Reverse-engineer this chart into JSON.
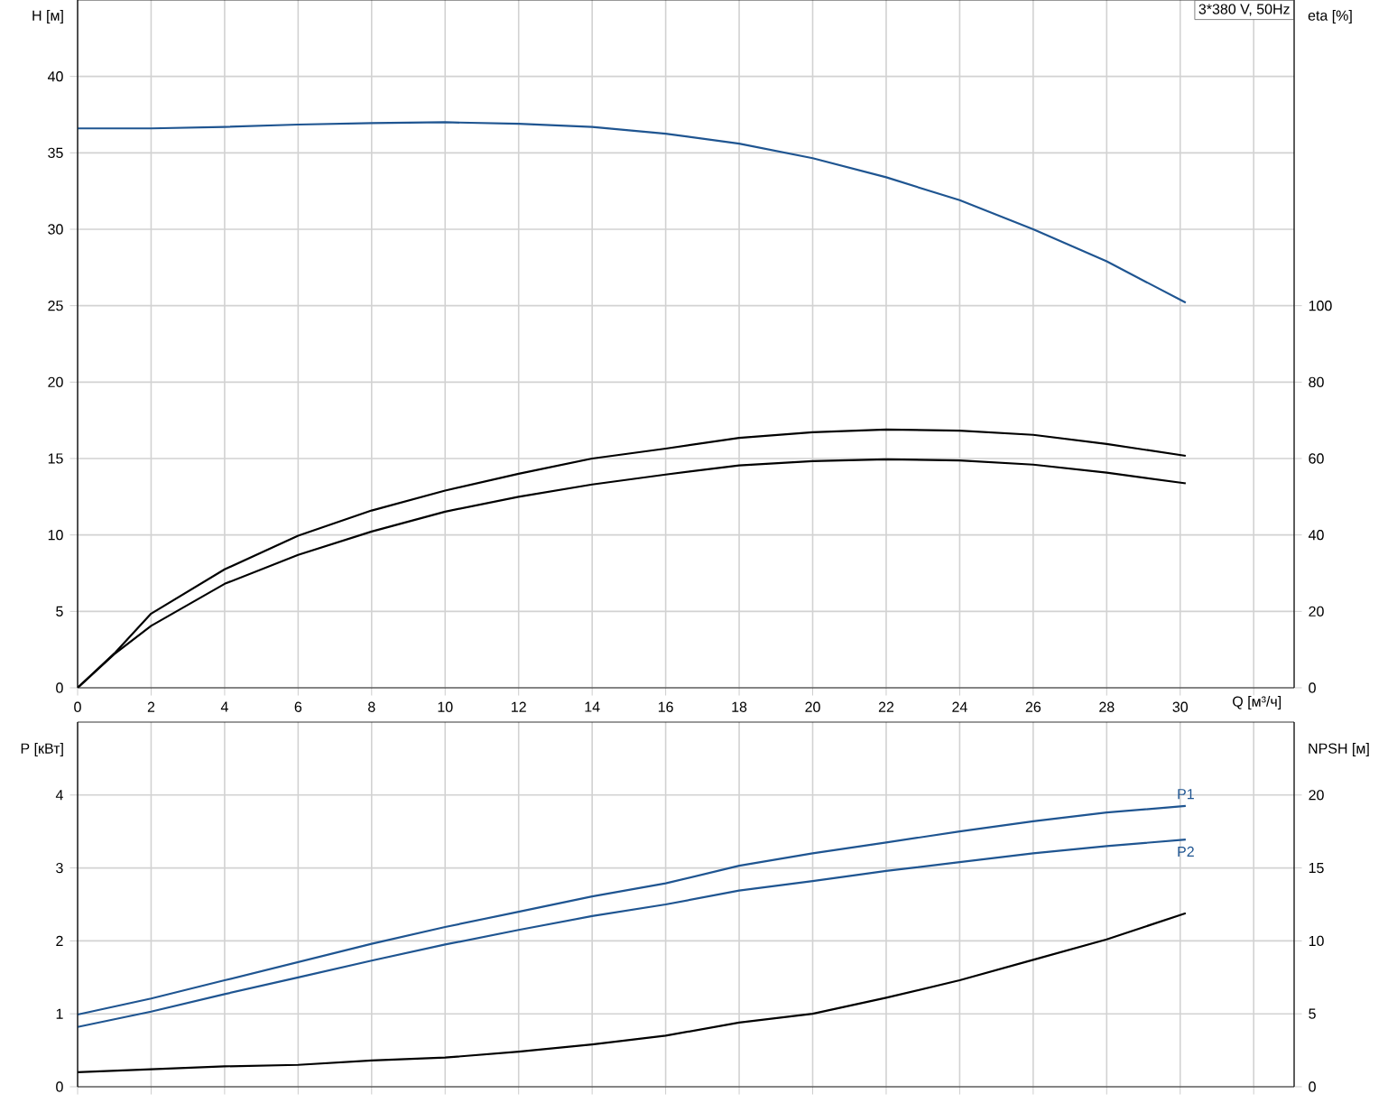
{
  "chart_data": [
    {
      "type": "line",
      "title": "3*380 V, 50Hz",
      "xlabel": "Q [м³/ч]",
      "ylabel": "H [м]",
      "y2label": "eta [%]",
      "xlim": [
        0,
        33.1
      ],
      "xticks": [
        0,
        2,
        4,
        6,
        8,
        10,
        12,
        14,
        16,
        18,
        20,
        22,
        24,
        26,
        28,
        30,
        {
          "value": 32,
          "label": null
        }
      ],
      "ylim": [
        0,
        45
      ],
      "yticks": [
        0,
        5,
        10,
        15,
        20,
        25,
        30,
        35,
        40
      ],
      "y2lim": [
        0,
        180
      ],
      "y2ticks": [
        0,
        20,
        40,
        60,
        80,
        100
      ],
      "grid": true,
      "series": [
        {
          "color": "#1f5591",
          "x": [
            0,
            2,
            4,
            6,
            8,
            10,
            12,
            14,
            16,
            18,
            20,
            22,
            24,
            26,
            28,
            30.15
          ],
          "values": [
            36.6,
            36.6,
            36.7,
            36.85,
            36.95,
            37.0,
            36.9,
            36.7,
            36.25,
            35.6,
            34.65,
            33.4,
            31.9,
            30.0,
            27.9,
            25.2
          ]
        },
        {
          "color": "#000000",
          "axis": "y2",
          "x": [
            0,
            1,
            2,
            4,
            6,
            8,
            10,
            12,
            14,
            16,
            18,
            20,
            22,
            24,
            26,
            28,
            30.15
          ],
          "values": [
            0,
            9,
            19.4,
            31,
            39.8,
            46.4,
            51.6,
            56,
            60,
            62.6,
            65.4,
            66.9,
            67.6,
            67.3,
            66.2,
            63.8,
            60.7
          ]
        },
        {
          "color": "#000000",
          "axis": "y2",
          "x": [
            0,
            1,
            2,
            4,
            6,
            8,
            10,
            12,
            14,
            16,
            18,
            20,
            22,
            24,
            26,
            28,
            30.15
          ],
          "values": [
            0,
            8.8,
            16.2,
            27.2,
            34.8,
            40.9,
            46.1,
            50,
            53.2,
            55.8,
            58.2,
            59.3,
            59.8,
            59.5,
            58.4,
            56.3,
            53.5
          ]
        }
      ]
    },
    {
      "type": "line",
      "ylabel": "P [кВт]",
      "y2label": "NPSH [м]",
      "xlim": [
        0,
        33.1
      ],
      "xticks": [
        0,
        2,
        4,
        6,
        8,
        10,
        12,
        14,
        16,
        18,
        20,
        22,
        24,
        26,
        28,
        30,
        32
      ],
      "ylim": [
        0,
        5
      ],
      "yticks": [
        0,
        1,
        2,
        3,
        4
      ],
      "y2lim": [
        0,
        25
      ],
      "y2ticks": [
        0,
        5,
        10,
        15,
        20
      ],
      "grid": true,
      "tick_labels": "y",
      "series": [
        {
          "name": "P1",
          "color": "#1f5591",
          "x": [
            0,
            2,
            4,
            6,
            8,
            10,
            12,
            14,
            16,
            18,
            20,
            22,
            24,
            26,
            28,
            30.15
          ],
          "values": [
            0.99,
            1.21,
            1.46,
            1.71,
            1.96,
            2.19,
            2.4,
            2.61,
            2.79,
            3.03,
            3.2,
            3.35,
            3.5,
            3.64,
            3.76,
            3.85
          ]
        },
        {
          "name": "P2",
          "color": "#1f5591",
          "x": [
            0,
            2,
            4,
            6,
            8,
            10,
            12,
            14,
            16,
            18,
            20,
            22,
            24,
            26,
            28,
            30.15
          ],
          "values": [
            0.82,
            1.03,
            1.27,
            1.5,
            1.73,
            1.95,
            2.15,
            2.34,
            2.5,
            2.69,
            2.82,
            2.96,
            3.08,
            3.2,
            3.3,
            3.39
          ]
        },
        {
          "color": "#000000",
          "axis": "y2",
          "x": [
            0,
            2,
            4,
            6,
            8,
            10,
            12,
            14,
            16,
            18,
            20,
            22,
            24,
            26,
            28,
            30.15
          ],
          "values": [
            1.0,
            1.2,
            1.4,
            1.5,
            1.8,
            2.0,
            2.4,
            2.9,
            3.5,
            4.4,
            5.0,
            6.1,
            7.3,
            8.7,
            10.1,
            11.9
          ]
        }
      ]
    }
  ]
}
